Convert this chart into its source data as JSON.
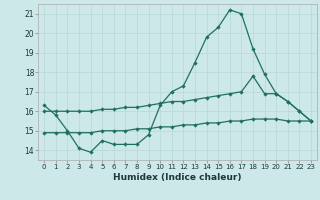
{
  "x": [
    0,
    1,
    2,
    3,
    4,
    5,
    6,
    7,
    8,
    9,
    10,
    11,
    12,
    13,
    14,
    15,
    16,
    17,
    18,
    19,
    20,
    21,
    22,
    23
  ],
  "line1": [
    16.3,
    15.8,
    15.0,
    14.1,
    13.9,
    14.5,
    14.3,
    14.3,
    14.3,
    14.8,
    16.3,
    17.0,
    17.3,
    18.5,
    19.8,
    20.3,
    21.2,
    21.0,
    19.2,
    17.9,
    16.9,
    16.5,
    16.0,
    15.5
  ],
  "line2": [
    16.0,
    16.0,
    16.0,
    16.0,
    16.0,
    16.1,
    16.1,
    16.2,
    16.2,
    16.3,
    16.4,
    16.5,
    16.5,
    16.6,
    16.7,
    16.8,
    16.9,
    17.0,
    17.8,
    16.9,
    16.9,
    16.5,
    16.0,
    15.5
  ],
  "line3": [
    14.9,
    14.9,
    14.9,
    14.9,
    14.9,
    15.0,
    15.0,
    15.0,
    15.1,
    15.1,
    15.2,
    15.2,
    15.3,
    15.3,
    15.4,
    15.4,
    15.5,
    15.5,
    15.6,
    15.6,
    15.6,
    15.5,
    15.5,
    15.5
  ],
  "bg_color": "#cce8e8",
  "line_color": "#207060",
  "grid_color": "#b8d8d8",
  "xlabel": "Humidex (Indice chaleur)",
  "ylim": [
    13.5,
    21.5
  ],
  "xlim": [
    -0.5,
    23.5
  ],
  "yticks": [
    14,
    15,
    16,
    17,
    18,
    19,
    20,
    21
  ],
  "xticks": [
    0,
    1,
    2,
    3,
    4,
    5,
    6,
    7,
    8,
    9,
    10,
    11,
    12,
    13,
    14,
    15,
    16,
    17,
    18,
    19,
    20,
    21,
    22,
    23
  ]
}
